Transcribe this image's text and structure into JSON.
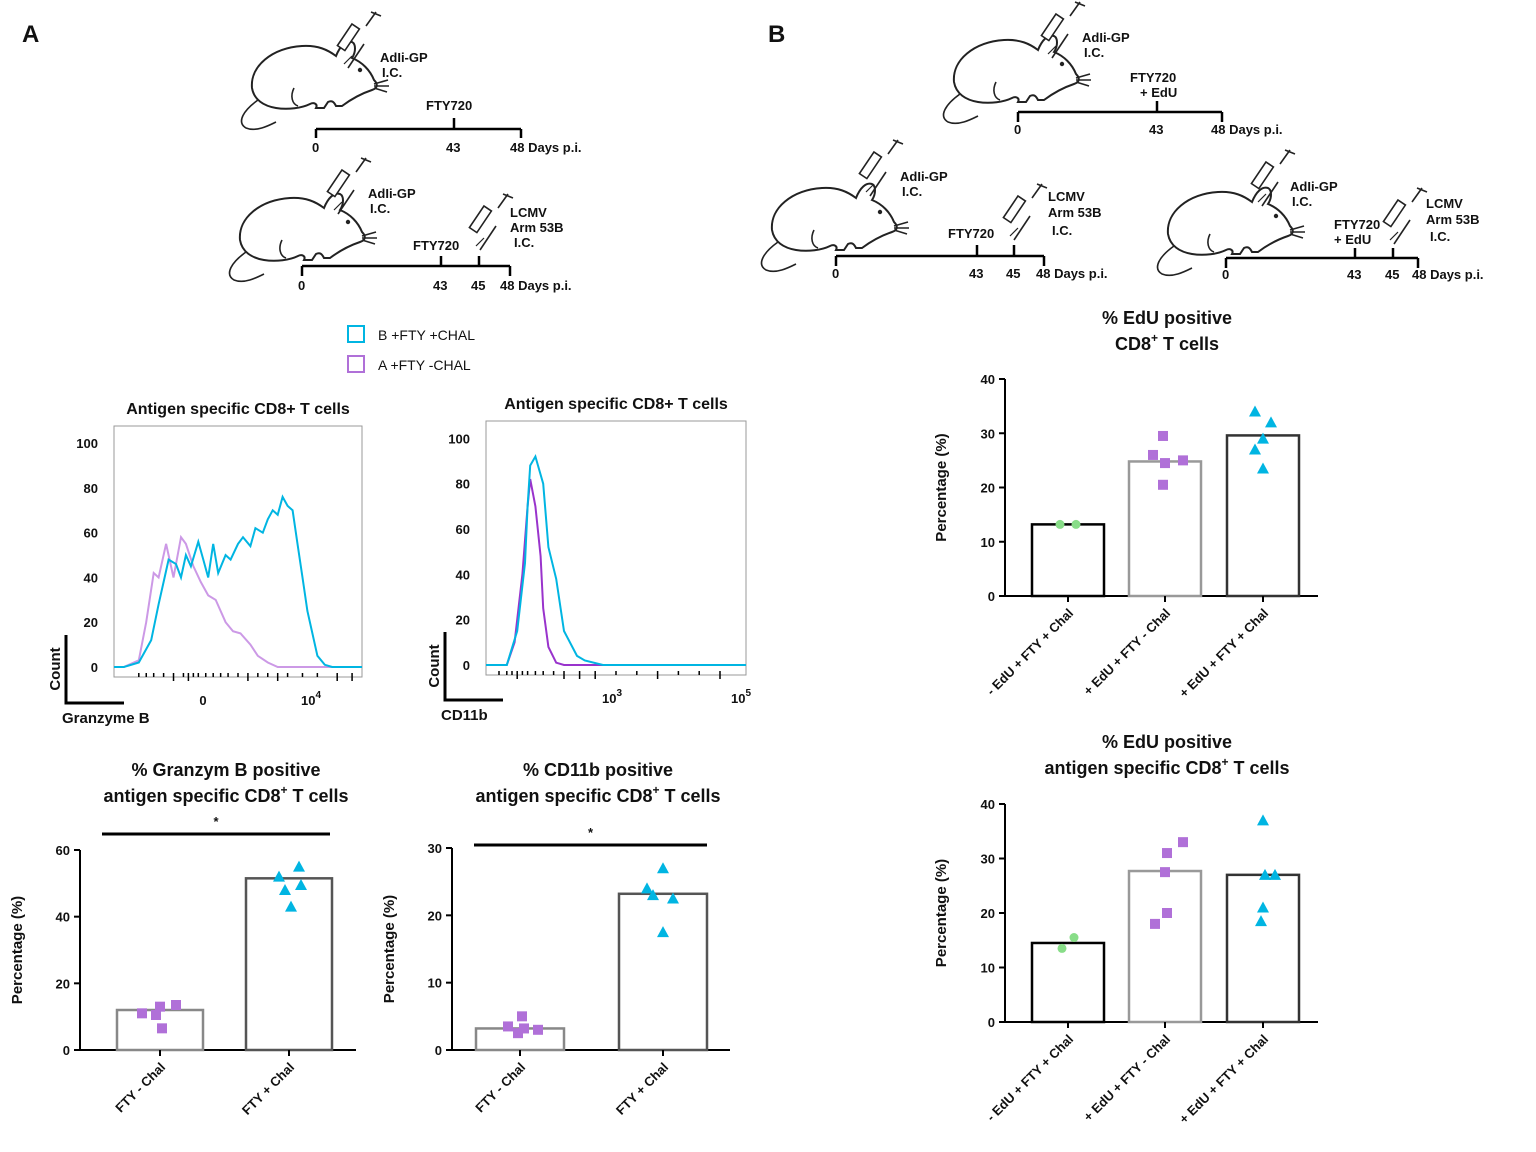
{
  "panels": {
    "A": "A",
    "B": "B"
  },
  "colors": {
    "fty_chal": "#00b5e2",
    "fty_no_chal": "#b070d8",
    "edu_ctrl": "#88dd88",
    "bar_ctrl_edge": "#000000",
    "bar_mid_edge": "#999999"
  },
  "schedules": {
    "a1": {
      "drug": "AdIi-GP",
      "route": "I.C.",
      "mid": "FTY720",
      "ticks": [
        "0",
        "43",
        "48 Days p.i."
      ]
    },
    "a2": {
      "drug": "AdIi-GP",
      "route": "I.C.",
      "mid": "FTY720",
      "challenge": [
        "LCMV",
        "Arm 53B",
        "I.C."
      ],
      "ticks": [
        "0",
        "43",
        "45",
        "48 Days p.i."
      ]
    },
    "b1": {
      "drug": "AdIi-GP",
      "route": "I.C.",
      "mid": [
        "FTY720",
        "+ EdU"
      ],
      "ticks": [
        "0",
        "43",
        "48 Days p.i."
      ]
    },
    "b2": {
      "drug": "AdIi-GP",
      "route": "I.C.",
      "mid": "FTY720",
      "challenge": [
        "LCMV",
        "Arm 53B",
        "I.C."
      ],
      "ticks": [
        "0",
        "43",
        "45",
        "48 Days p.i."
      ]
    },
    "b3": {
      "drug": "AdIi-GP",
      "route": "I.C.",
      "mid": [
        "FTY720",
        "+ EdU"
      ],
      "challenge": [
        "LCMV",
        "Arm 53B",
        "I.C."
      ],
      "ticks": [
        "0",
        "43",
        "45",
        "48 Days p.i."
      ]
    }
  },
  "legend": {
    "items": [
      {
        "label": "B +FTY +CHAL",
        "color": "#00b5e2"
      },
      {
        "label": "A +FTY -CHAL",
        "color": "#b070d8"
      }
    ]
  },
  "chart_data": [
    {
      "id": "hist_granzyme",
      "type": "line",
      "title": "Antigen specific CD8+ T cells",
      "xlabel": "Granzyme B",
      "ylabel": "Count",
      "yticks": [
        "0",
        "20",
        "40",
        "60",
        "80",
        "100"
      ],
      "xticks": [
        "0",
        "10^4"
      ],
      "ylim": [
        0,
        105
      ],
      "series": [
        {
          "name": "B +FTY +CHAL",
          "x": [
            0.0,
            0.04,
            0.1,
            0.15,
            0.18,
            0.2,
            0.22,
            0.25,
            0.27,
            0.29,
            0.31,
            0.34,
            0.36,
            0.38,
            0.4,
            0.42,
            0.45,
            0.47,
            0.5,
            0.52,
            0.55,
            0.57,
            0.6,
            0.62,
            0.64,
            0.66,
            0.68,
            0.7,
            0.72,
            0.74,
            0.76,
            0.78,
            0.8,
            0.82,
            0.85,
            0.88,
            0.92,
            1.0
          ],
          "y": [
            0,
            0,
            2,
            12,
            28,
            38,
            48,
            46,
            40,
            50,
            45,
            56,
            48,
            40,
            55,
            42,
            50,
            48,
            55,
            58,
            54,
            62,
            60,
            66,
            70,
            68,
            76,
            72,
            70,
            55,
            40,
            25,
            15,
            5,
            1,
            0,
            0,
            0
          ]
        },
        {
          "name": "A +FTY -CHAL",
          "x": [
            0.0,
            0.04,
            0.1,
            0.13,
            0.16,
            0.18,
            0.21,
            0.24,
            0.27,
            0.29,
            0.32,
            0.35,
            0.38,
            0.41,
            0.45,
            0.48,
            0.51,
            0.55,
            0.58,
            0.62,
            0.66,
            0.7,
            1.0
          ],
          "y": [
            0,
            0,
            3,
            20,
            42,
            40,
            55,
            40,
            58,
            55,
            45,
            38,
            32,
            30,
            20,
            16,
            15,
            10,
            5,
            2,
            0,
            0,
            0
          ]
        }
      ]
    },
    {
      "id": "hist_cd11b",
      "type": "line",
      "title": "Antigen specific CD8+ T cells",
      "xlabel": "CD11b",
      "ylabel": "Count",
      "yticks": [
        "0",
        "20",
        "40",
        "60",
        "80",
        "100"
      ],
      "xticks": [
        "10^3",
        "10^5"
      ],
      "ylim": [
        0,
        105
      ],
      "series": [
        {
          "name": "B +FTY +CHAL",
          "x": [
            0.0,
            0.08,
            0.12,
            0.15,
            0.16,
            0.17,
            0.19,
            0.22,
            0.24,
            0.27,
            0.3,
            0.35,
            0.38,
            0.45,
            1.0
          ],
          "y": [
            0,
            0,
            15,
            45,
            70,
            88,
            92,
            80,
            52,
            38,
            15,
            4,
            2,
            0,
            0
          ]
        },
        {
          "name": "A +FTY -CHAL",
          "x": [
            0.0,
            0.08,
            0.11,
            0.14,
            0.16,
            0.17,
            0.19,
            0.21,
            0.22,
            0.24,
            0.27,
            0.3,
            1.0
          ],
          "y": [
            0,
            0,
            10,
            40,
            70,
            82,
            70,
            48,
            25,
            8,
            1,
            0,
            0
          ]
        }
      ]
    },
    {
      "id": "bar_granzyme",
      "type": "bar",
      "title": [
        "% Granzym B positive",
        "antigen specific CD8",
        "+",
        " T cells"
      ],
      "ylabel": "Percentage (%)",
      "ylim": [
        0,
        60
      ],
      "yticks": [
        "0",
        "20",
        "40",
        "60"
      ],
      "categories": [
        "FTY - Chal",
        "FTY + Chal"
      ],
      "values": [
        12,
        51.5
      ],
      "points": [
        [
          13.5,
          11,
          13,
          6.5,
          10.5
        ],
        [
          52,
          55,
          48,
          43,
          49.5
        ]
      ],
      "significance": "*"
    },
    {
      "id": "bar_cd11b",
      "type": "bar",
      "title": [
        "% CD11b positive",
        "antigen specific CD8",
        "+",
        " T cells"
      ],
      "ylabel": "Percentage (%)",
      "ylim": [
        0,
        30
      ],
      "yticks": [
        "0",
        "10",
        "20",
        "30"
      ],
      "categories": [
        "FTY - Chal",
        "FTY + Chal"
      ],
      "values": [
        3.2,
        23.2
      ],
      "points": [
        [
          3.5,
          5,
          2.5,
          3,
          3.2
        ],
        [
          23,
          27,
          22.5,
          24,
          17.5
        ]
      ],
      "significance": "*"
    },
    {
      "id": "bar_edu_cd8",
      "type": "bar",
      "title": [
        "% EdU positive",
        "CD8",
        "+",
        " T cells"
      ],
      "ylabel": "Percentage (%)",
      "ylim": [
        0,
        40
      ],
      "yticks": [
        "0",
        "10",
        "20",
        "30",
        "40"
      ],
      "categories": [
        "- EdU + FTY + Chal",
        "+ EdU + FTY - Chal",
        "+ EdU + FTY + Chal"
      ],
      "values": [
        13.2,
        24.8,
        29.6
      ],
      "points": [
        [
          13.2,
          13.2
        ],
        [
          29.5,
          26,
          24.5,
          25,
          20.5
        ],
        [
          34,
          32,
          29,
          27,
          23.5
        ]
      ]
    },
    {
      "id": "bar_edu_ag",
      "type": "bar",
      "title": [
        "% EdU positive",
        "antigen specific CD8",
        "+",
        " T cells"
      ],
      "ylabel": "Percentage (%)",
      "ylim": [
        0,
        40
      ],
      "yticks": [
        "0",
        "10",
        "20",
        "30",
        "40"
      ],
      "categories": [
        "- EdU + FTY + Chal",
        "+ EdU + FTY - Chal",
        "+ EdU + FTY + Chal"
      ],
      "values": [
        14.5,
        27.7,
        27.0
      ],
      "points": [
        [
          13.5,
          15.5
        ],
        [
          33,
          31,
          27.5,
          20,
          18
        ],
        [
          37,
          27,
          27,
          21,
          18.5
        ]
      ]
    }
  ]
}
